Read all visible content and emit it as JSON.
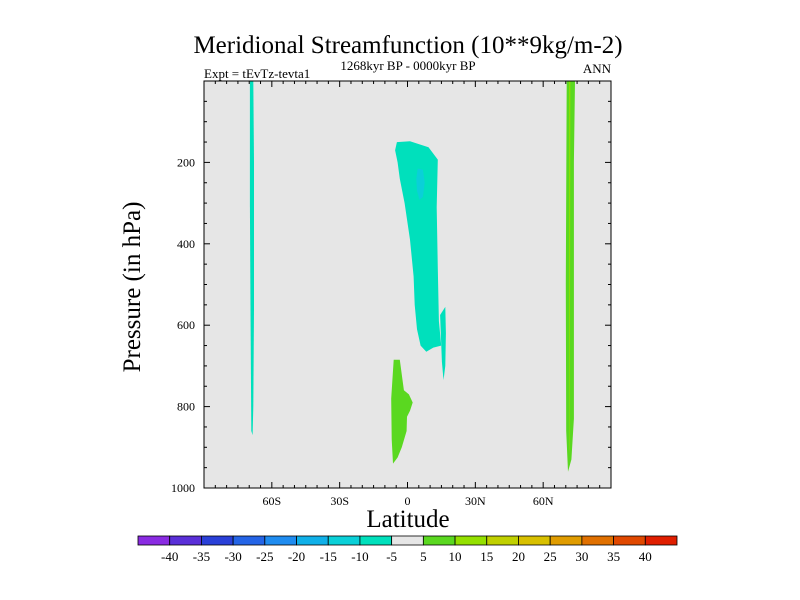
{
  "chart_data": {
    "type": "heatmap",
    "title": "Meridional Streamfunction (10**9kg/m-2)",
    "subtitle_left": "Expt = tEvTz-tevta1",
    "subtitle_center": "1268kyr BP - 0000kyr BP",
    "subtitle_right": "ANN",
    "xlabel": "Latitude",
    "ylabel": "Pressure (in hPa)",
    "xlim": [
      -90,
      90
    ],
    "ylim": [
      1000,
      0
    ],
    "x_ticks": [
      {
        "value": -60,
        "label": "60S"
      },
      {
        "value": -30,
        "label": "30S"
      },
      {
        "value": 0,
        "label": "0"
      },
      {
        "value": 30,
        "label": "30N"
      },
      {
        "value": 60,
        "label": "60N"
      }
    ],
    "y_ticks": [
      {
        "value": 200,
        "label": "200"
      },
      {
        "value": 400,
        "label": "400"
      },
      {
        "value": 600,
        "label": "600"
      },
      {
        "value": 800,
        "label": "800"
      },
      {
        "value": 1000,
        "label": "1000"
      }
    ],
    "background_color": "#e6e6e6",
    "colorbar": {
      "labels": [
        "-40",
        "-35",
        "-30",
        "-25",
        "-20",
        "-15",
        "-10",
        "-5",
        "5",
        "10",
        "15",
        "20",
        "25",
        "30",
        "35",
        "40"
      ],
      "colors": [
        "#8a2be2",
        "#5a2fd8",
        "#2a40d8",
        "#2464e6",
        "#1f8cf0",
        "#10b0e8",
        "#0ad0d8",
        "#00e0bc",
        "#e6e6e6",
        "#5ad820",
        "#94e000",
        "#c0d000",
        "#d8c000",
        "#e09c00",
        "#e07000",
        "#e04800",
        "#e01e00"
      ]
    },
    "regions": [
      {
        "name": "southern-polar-strip",
        "level": -5,
        "color": "#00e0bc",
        "points": [
          [
            -69.7,
            0
          ],
          [
            -68.2,
            0
          ],
          [
            -67.9,
            200
          ],
          [
            -67.9,
            560
          ],
          [
            -68.2,
            800
          ],
          [
            -68.5,
            870
          ],
          [
            -69.1,
            860
          ],
          [
            -69.4,
            600
          ],
          [
            -69.7,
            300
          ]
        ]
      },
      {
        "name": "tropical-upper-cell",
        "level": -5,
        "color": "#00e0bc",
        "points": [
          [
            -4.7,
            150
          ],
          [
            1.1,
            148
          ],
          [
            9.3,
            163
          ],
          [
            13.4,
            193
          ],
          [
            12.9,
            310
          ],
          [
            13.4,
            460
          ],
          [
            13.9,
            590
          ],
          [
            14.9,
            650
          ],
          [
            11.4,
            655
          ],
          [
            8.3,
            665
          ],
          [
            5.8,
            650
          ],
          [
            4.2,
            610
          ],
          [
            3.2,
            550
          ],
          [
            2.7,
            480
          ],
          [
            1.1,
            390
          ],
          [
            -1.3,
            300
          ],
          [
            -3.4,
            240
          ],
          [
            -4.4,
            200
          ],
          [
            -5.5,
            170
          ]
        ]
      },
      {
        "name": "tropical-upper-core",
        "level": -10,
        "color": "#0ad0d8",
        "points": [
          [
            4.5,
            215
          ],
          [
            6.8,
            218
          ],
          [
            7.6,
            250
          ],
          [
            6.8,
            285
          ],
          [
            5.3,
            292
          ],
          [
            4.2,
            270
          ],
          [
            3.9,
            240
          ]
        ]
      },
      {
        "name": "tropical-side-branch",
        "level": -5,
        "color": "#00e0bc",
        "points": [
          [
            14.4,
            575
          ],
          [
            16.7,
            555
          ],
          [
            17.0,
            620
          ],
          [
            16.7,
            700
          ],
          [
            15.9,
            735
          ],
          [
            15.2,
            690
          ]
        ]
      },
      {
        "name": "tropical-lower-cell",
        "level": 5,
        "color": "#5ad820",
        "points": [
          [
            -6.1,
            685
          ],
          [
            -3.4,
            685
          ],
          [
            -1.6,
            760
          ],
          [
            0.6,
            770
          ],
          [
            2.3,
            790
          ],
          [
            1.1,
            810
          ],
          [
            -0.2,
            825
          ],
          [
            -0.4,
            860
          ],
          [
            -2.5,
            900
          ],
          [
            -4.4,
            925
          ],
          [
            -6.4,
            940
          ],
          [
            -7.0,
            880
          ],
          [
            -7.2,
            780
          ]
        ]
      },
      {
        "name": "northern-polar-strip",
        "level": 5,
        "color": "#5ad820",
        "points": [
          [
            70.4,
            0
          ],
          [
            74.1,
            0
          ],
          [
            73.6,
            200
          ],
          [
            73.6,
            600
          ],
          [
            73.6,
            830
          ],
          [
            72.5,
            930
          ],
          [
            71.0,
            960
          ],
          [
            70.2,
            860
          ],
          [
            70.0,
            500
          ]
        ]
      },
      {
        "name": "northern-polar-core",
        "level": 10,
        "color": "#94e000",
        "points": [
          [
            71.5,
            0
          ],
          [
            72.0,
            0
          ],
          [
            71.9,
            400
          ],
          [
            71.8,
            900
          ],
          [
            71.6,
            920
          ],
          [
            71.5,
            500
          ]
        ]
      }
    ]
  }
}
